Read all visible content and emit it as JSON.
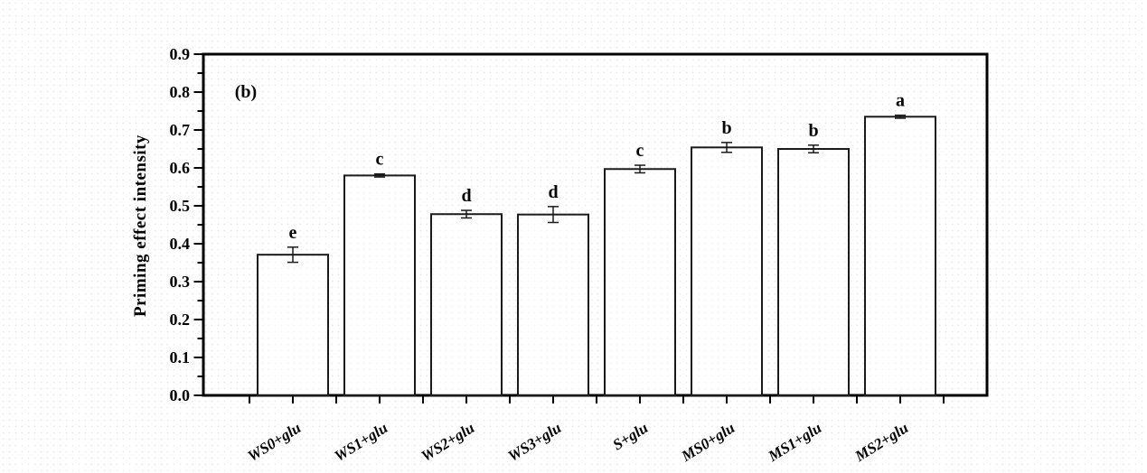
{
  "figure": {
    "panel_label": "(b)",
    "colors": {
      "axis": "#000000",
      "bar_fill": "#ffffff",
      "bar_stroke": "#1a1a1a",
      "error_bar": "#1a1a1a",
      "text": "#000000",
      "background": "#ffffff"
    }
  },
  "chart_data": {
    "type": "bar",
    "title": "",
    "xlabel": "",
    "ylabel": "Priming effect intensity",
    "categories": [
      "WS0+glu",
      "WS1+glu",
      "WS2+glu",
      "WS3+glu",
      "S+glu",
      "MS0+glu",
      "MS1+glu",
      "MS2+glu"
    ],
    "values": [
      0.371,
      0.58,
      0.478,
      0.477,
      0.597,
      0.654,
      0.65,
      0.735
    ],
    "errors": [
      0.02,
      0.004,
      0.01,
      0.021,
      0.01,
      0.013,
      0.01,
      0.004
    ],
    "sig_letters": [
      "e",
      "c",
      "d",
      "d",
      "c",
      "b",
      "b",
      "a"
    ],
    "ylim": [
      0.0,
      0.9
    ],
    "ytick_step": 0.1,
    "ytick_minor_step": 0.05,
    "ytick_labels": [
      "0.0",
      "0.1",
      "0.2",
      "0.3",
      "0.4",
      "0.5",
      "0.6",
      "0.7",
      "0.8",
      "0.9"
    ],
    "grid": false,
    "legend": null,
    "bar_style": "open-outline",
    "x_label_rotation_deg": -32
  }
}
